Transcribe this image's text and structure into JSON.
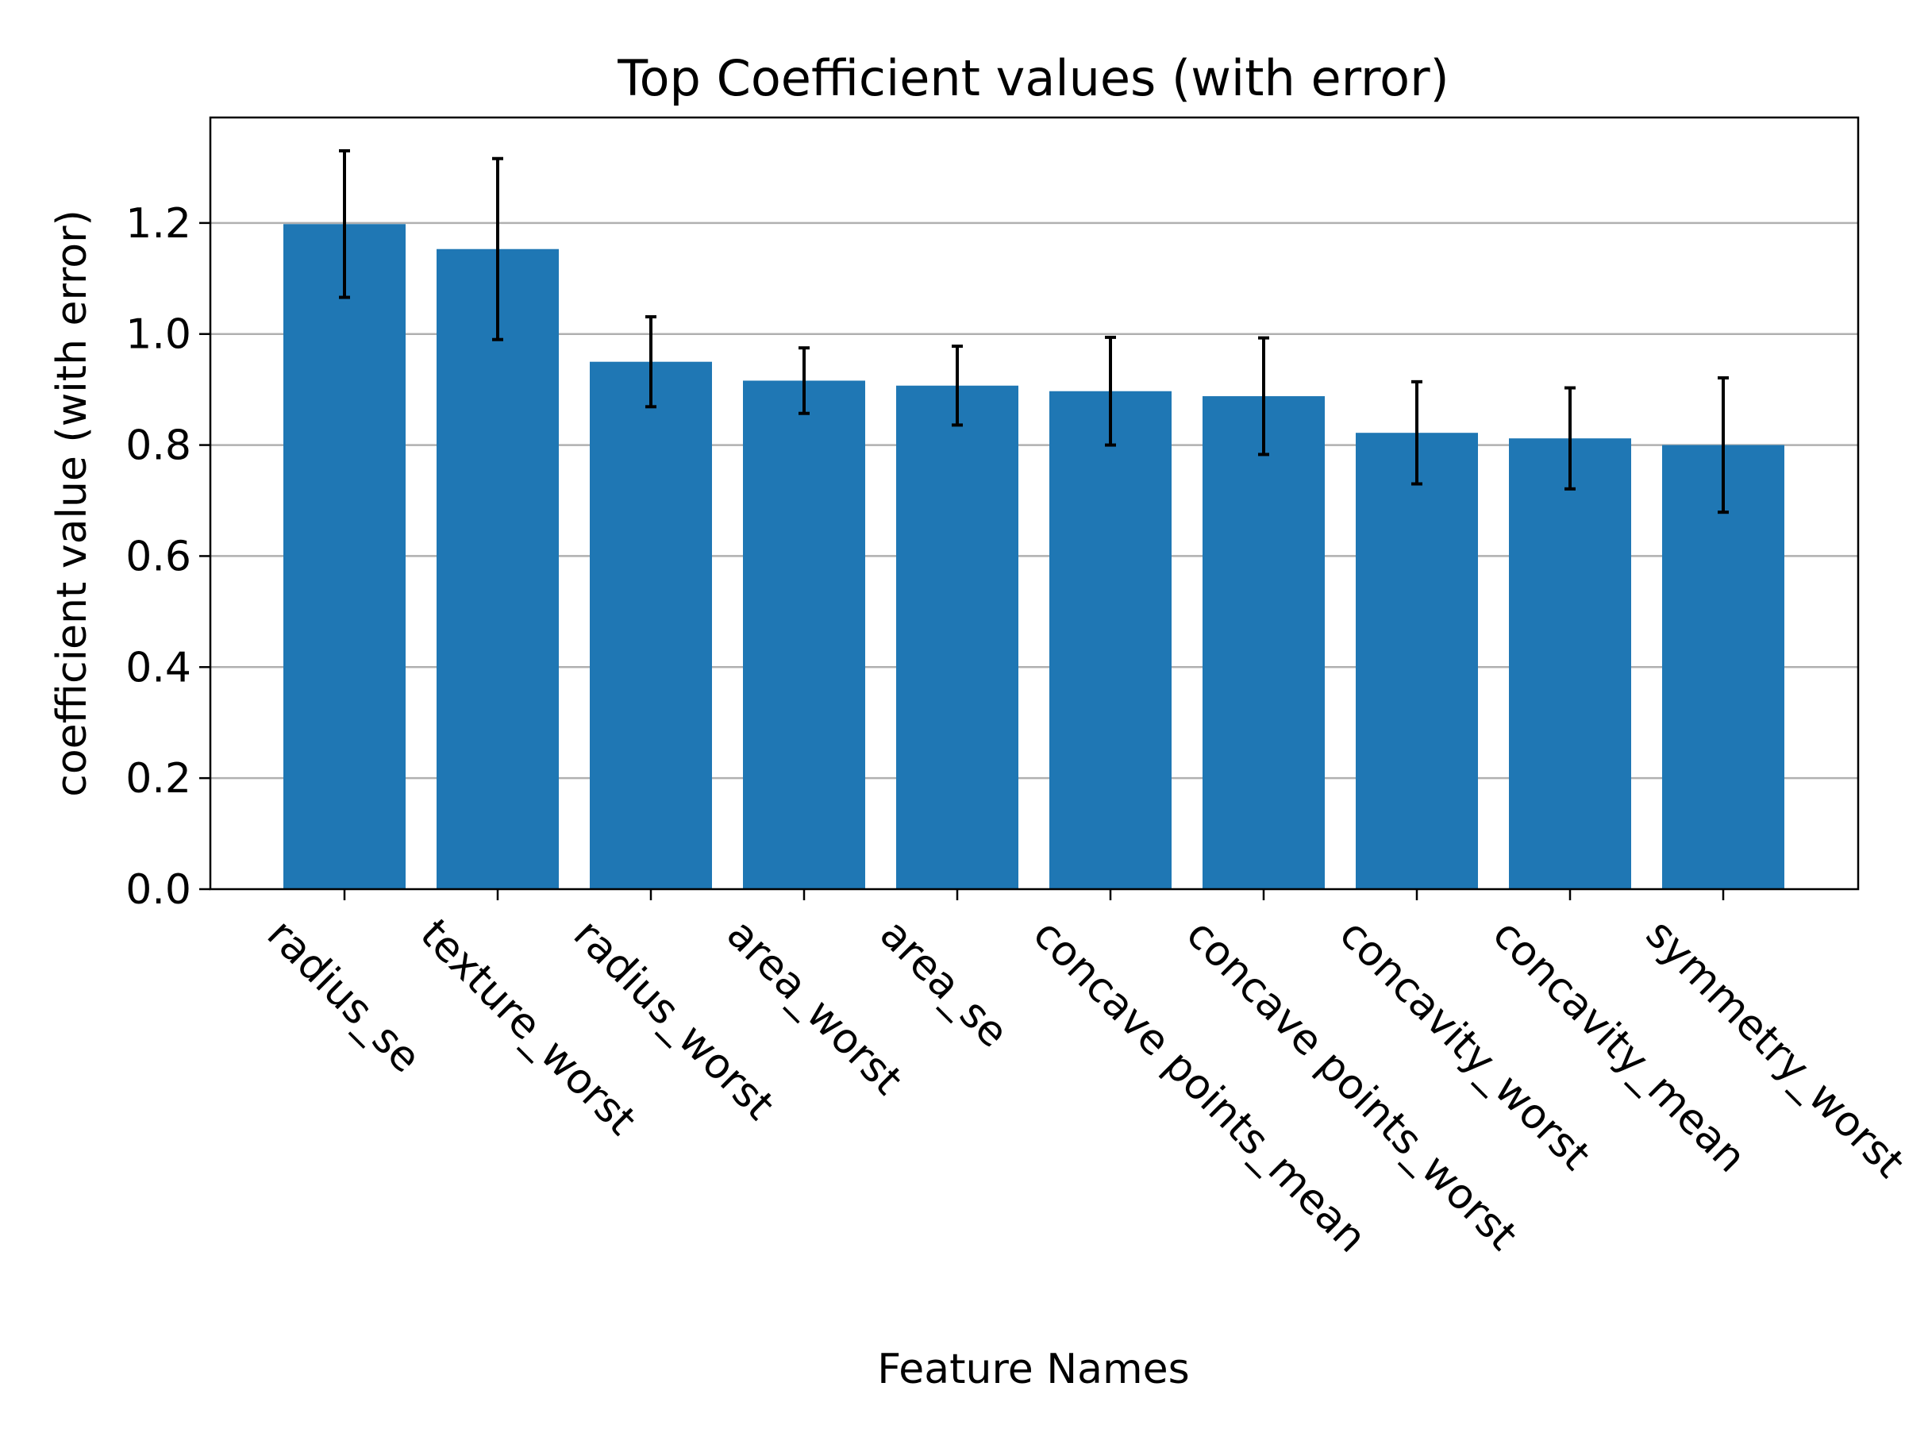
{
  "chart_data": {
    "type": "bar",
    "title": "Top Coefficient values (with error)",
    "xlabel": "Feature Names",
    "ylabel": "coefficient value (with error)",
    "categories": [
      "radius_se",
      "texture_worst",
      "radius_worst",
      "area_worst",
      "area_se",
      "concave points_mean",
      "concave points_worst",
      "concavity_worst",
      "concavity_mean",
      "symmetry_worst"
    ],
    "values": [
      1.198,
      1.153,
      0.95,
      0.916,
      0.907,
      0.897,
      0.888,
      0.822,
      0.812,
      0.8
    ],
    "errors": [
      0.132,
      0.163,
      0.081,
      0.059,
      0.071,
      0.097,
      0.105,
      0.092,
      0.091,
      0.121
    ],
    "ylim": [
      0,
      1.39
    ],
    "yticks": [
      0.0,
      0.2,
      0.4,
      0.6,
      0.8,
      1.0,
      1.2
    ],
    "grid": "y",
    "bar_color": "#1f77b4",
    "error_color": "#000000"
  }
}
